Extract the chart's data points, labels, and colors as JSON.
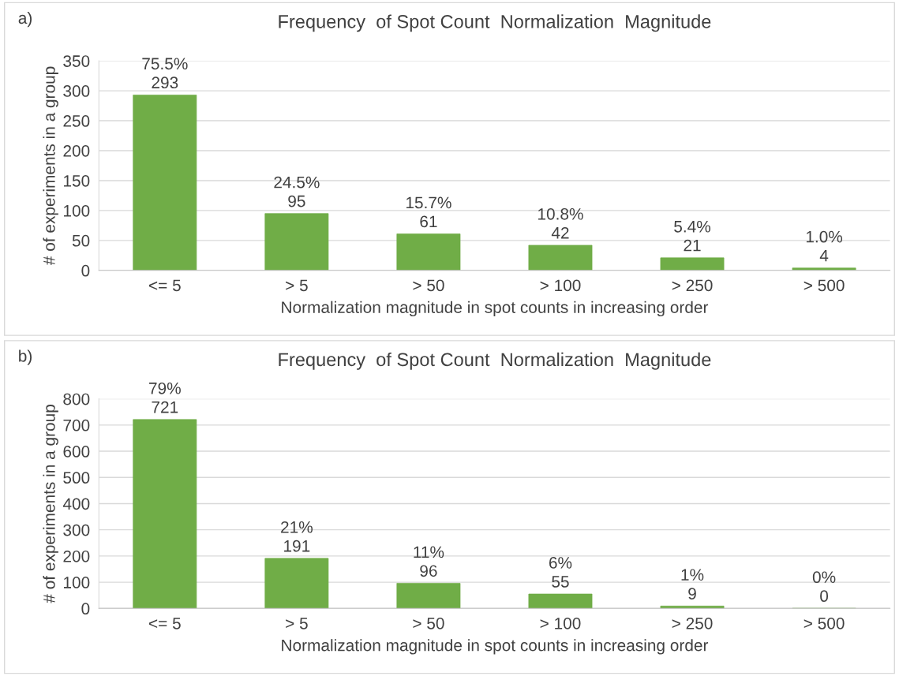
{
  "chart_data": [
    {
      "type": "bar",
      "title": "Frequency  of Spot Count  Normalization  Magnitude",
      "xlabel": "Normalization magnitude in spot counts in increasing order",
      "ylabel": "# of experiments in a group",
      "annotations": [
        "a)"
      ],
      "categories": [
        "<= 5",
        "> 5",
        "> 50",
        "> 100",
        "> 250",
        "> 500"
      ],
      "values": [
        293,
        95,
        61,
        42,
        21,
        4
      ],
      "value_labels": [
        "75.5%\n293",
        "24.5%\n95",
        "15.7%\n61",
        "10.8%\n42",
        "5.4%\n21",
        "1.0%\n4"
      ],
      "color": "#70ad47",
      "ylim": [
        0,
        350
      ],
      "yticks": [
        0,
        50,
        100,
        150,
        200,
        250,
        300,
        350
      ],
      "grid": "y",
      "legend": false
    },
    {
      "type": "bar",
      "title": "Frequency  of Spot Count  Normalization  Magnitude",
      "xlabel": "Normalization magnitude in spot counts in increasing order",
      "ylabel": "# of experiments in a group",
      "annotations": [
        "b)"
      ],
      "categories": [
        "<= 5",
        "> 5",
        "> 50",
        "> 100",
        "> 250",
        "> 500"
      ],
      "values": [
        721,
        191,
        96,
        55,
        9,
        0
      ],
      "value_labels": [
        "79%\n721",
        "21%\n191",
        "11%\n96",
        "6%\n55",
        "1%\n9",
        "0%\n0"
      ],
      "color": "#70ad47",
      "ylim": [
        0,
        800
      ],
      "yticks": [
        0,
        100,
        200,
        300,
        400,
        500,
        600,
        700,
        800
      ],
      "grid": "y",
      "legend": false
    }
  ]
}
